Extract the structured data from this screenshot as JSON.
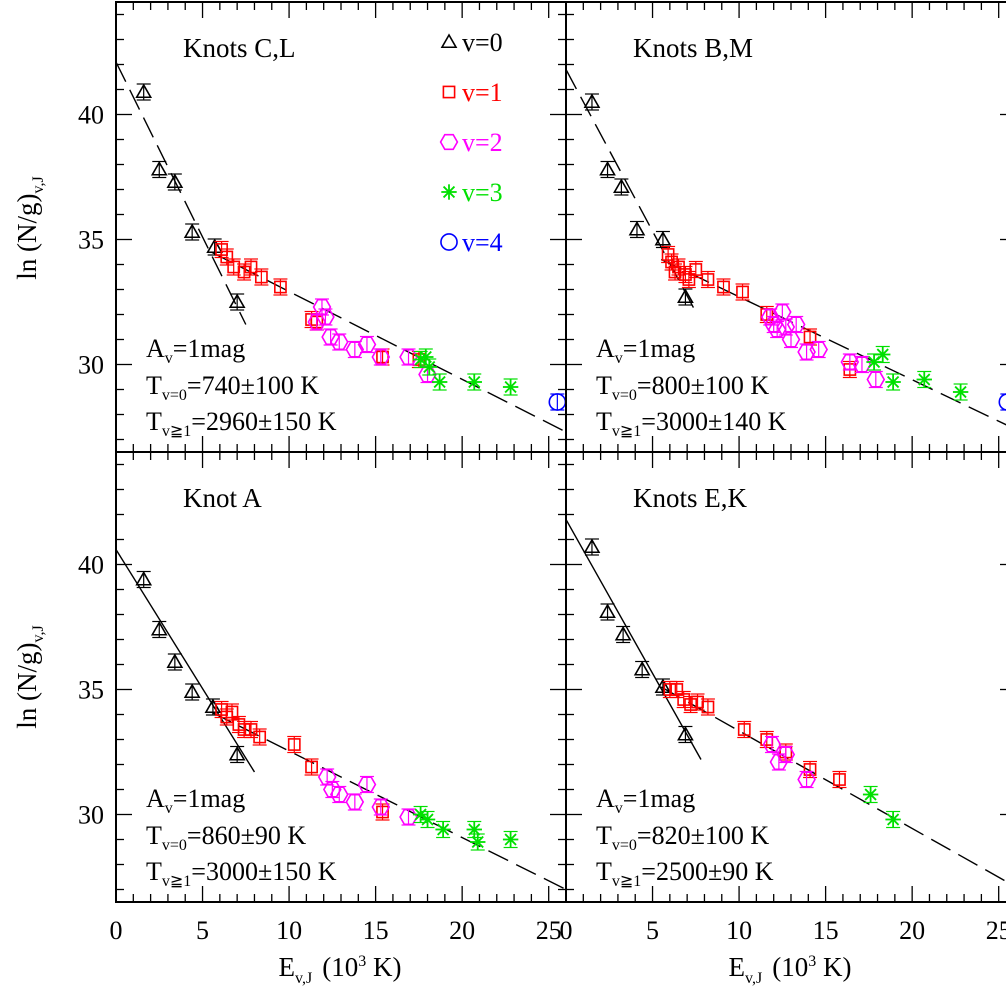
{
  "figure": {
    "ylabel_main": "ln (N/g)",
    "ylabel_sub": "v,J",
    "xlabel_main": "E",
    "xlabel_sub": "v,J",
    "xlabel_unit": "(10",
    "xlabel_exp": "3",
    "xlabel_unit_end": " K)",
    "xticks": [
      "0",
      "5",
      "10",
      "15",
      "20",
      "25"
    ],
    "yticks": [
      "30",
      "35",
      "40"
    ],
    "legend": [
      {
        "marker": "triangle",
        "label": "v=0",
        "color": "#000000"
      },
      {
        "marker": "square",
        "label": "v=1",
        "color": "#ff0000"
      },
      {
        "marker": "hexagon",
        "label": "v=2",
        "color": "#ff00ff"
      },
      {
        "marker": "asterisk",
        "label": "v=3",
        "color": "#00e000"
      },
      {
        "marker": "circle",
        "label": "v=4",
        "color": "#0000ff"
      }
    ]
  },
  "chart_data": [
    {
      "type": "scatter",
      "title": "Knots C,L",
      "xlim": [
        0,
        26
      ],
      "ylim": [
        26.5,
        44.5
      ],
      "annotations": {
        "av": "1mag",
        "t0": "740±100 K",
        "t1": "2960±150 K"
      },
      "fit_lines": [
        {
          "style": "dashed",
          "x": [
            0,
            7.5
          ],
          "y": [
            42.1,
            31.6
          ]
        },
        {
          "style": "dashed",
          "x": [
            5.5,
            26
          ],
          "y": [
            34.5,
            27.3
          ]
        }
      ],
      "series": [
        {
          "name": "v=0",
          "points": [
            [
              1.6,
              40.9
            ],
            [
              2.5,
              37.8
            ],
            [
              3.4,
              37.3
            ],
            [
              4.4,
              35.3
            ],
            [
              5.7,
              34.7
            ],
            [
              7.0,
              32.5
            ]
          ]
        },
        {
          "name": "v=1",
          "points": [
            [
              6.1,
              34.6
            ],
            [
              6.4,
              34.3
            ],
            [
              6.8,
              33.9
            ],
            [
              7.4,
              33.7
            ],
            [
              7.8,
              33.9
            ],
            [
              8.4,
              33.5
            ],
            [
              9.5,
              33.1
            ],
            [
              11.3,
              31.8
            ],
            [
              11.6,
              31.7
            ],
            [
              15.4,
              30.3
            ],
            [
              17.5,
              30.2
            ]
          ]
        },
        {
          "name": "v=2",
          "points": [
            [
              11.6,
              31.7
            ],
            [
              11.9,
              32.3
            ],
            [
              12.1,
              31.9
            ],
            [
              12.4,
              31.1
            ],
            [
              12.9,
              30.9
            ],
            [
              13.8,
              30.6
            ],
            [
              14.5,
              30.8
            ],
            [
              15.3,
              30.3
            ],
            [
              16.9,
              30.3
            ],
            [
              18.0,
              29.6
            ]
          ]
        },
        {
          "name": "v=3",
          "points": [
            [
              17.6,
              30.2
            ],
            [
              17.9,
              30.3
            ],
            [
              18.1,
              29.9
            ],
            [
              18.7,
              29.3
            ],
            [
              20.7,
              29.3
            ],
            [
              22.8,
              29.1
            ]
          ]
        },
        {
          "name": "v=4",
          "points": [
            [
              25.5,
              28.5
            ]
          ]
        }
      ]
    },
    {
      "type": "scatter",
      "title": "Knots B,M",
      "xlim": [
        0,
        26
      ],
      "ylim": [
        26.5,
        44.5
      ],
      "annotations": {
        "av": "1mag",
        "t0": "800±100 K",
        "t1": "3000±140 K"
      },
      "fit_lines": [
        {
          "style": "dashed",
          "x": [
            0,
            7.5
          ],
          "y": [
            41.8,
            32.1
          ]
        },
        {
          "style": "dashed",
          "x": [
            5.5,
            26
          ],
          "y": [
            34.2,
            27.4
          ]
        }
      ],
      "series": [
        {
          "name": "v=0",
          "points": [
            [
              1.5,
              40.5
            ],
            [
              2.4,
              37.8
            ],
            [
              3.2,
              37.1
            ],
            [
              4.1,
              35.4
            ],
            [
              5.6,
              35.0
            ],
            [
              6.9,
              32.7
            ]
          ]
        },
        {
          "name": "v=1",
          "points": [
            [
              5.9,
              34.4
            ],
            [
              6.1,
              34.1
            ],
            [
              6.3,
              33.7
            ],
            [
              6.5,
              33.9
            ],
            [
              6.9,
              33.6
            ],
            [
              7.1,
              33.4
            ],
            [
              7.5,
              33.8
            ],
            [
              8.2,
              33.4
            ],
            [
              9.1,
              33.1
            ],
            [
              10.2,
              32.9
            ],
            [
              11.6,
              32.0
            ],
            [
              14.1,
              31.1
            ],
            [
              16.4,
              29.8
            ]
          ]
        },
        {
          "name": "v=2",
          "points": [
            [
              11.8,
              31.9
            ],
            [
              12.0,
              31.6
            ],
            [
              12.2,
              31.4
            ],
            [
              12.5,
              32.1
            ],
            [
              12.7,
              31.5
            ],
            [
              13.0,
              31.0
            ],
            [
              13.3,
              31.6
            ],
            [
              13.9,
              30.5
            ],
            [
              14.6,
              30.6
            ],
            [
              16.4,
              30.1
            ],
            [
              17.1,
              30.0
            ],
            [
              17.9,
              29.4
            ]
          ]
        },
        {
          "name": "v=3",
          "points": [
            [
              17.8,
              30.1
            ],
            [
              18.3,
              30.4
            ],
            [
              18.9,
              29.3
            ],
            [
              20.7,
              29.4
            ],
            [
              22.8,
              28.9
            ]
          ]
        },
        {
          "name": "v=4",
          "points": [
            [
              25.5,
              28.5
            ]
          ]
        }
      ]
    },
    {
      "type": "scatter",
      "title": "Knot A",
      "xlim": [
        0,
        26
      ],
      "ylim": [
        26.5,
        44.5
      ],
      "annotations": {
        "av": "1mag",
        "t0": "860±90 K",
        "t1": "3000±150 K"
      },
      "fit_lines": [
        {
          "style": "solid",
          "x": [
            0,
            8.0
          ],
          "y": [
            40.6,
            31.7
          ]
        },
        {
          "style": "dashed",
          "x": [
            5.5,
            26
          ],
          "y": [
            34.1,
            27.0
          ]
        }
      ],
      "series": [
        {
          "name": "v=0",
          "points": [
            [
              1.6,
              39.4
            ],
            [
              2.5,
              37.4
            ],
            [
              3.4,
              36.1
            ],
            [
              4.4,
              34.9
            ],
            [
              5.6,
              34.3
            ],
            [
              7.0,
              32.4
            ]
          ]
        },
        {
          "name": "v=1",
          "points": [
            [
              6.1,
              34.2
            ],
            [
              6.4,
              33.9
            ],
            [
              6.7,
              34.1
            ],
            [
              7.1,
              33.6
            ],
            [
              7.4,
              33.4
            ],
            [
              7.8,
              33.4
            ],
            [
              8.3,
              33.1
            ],
            [
              10.3,
              32.8
            ],
            [
              11.3,
              31.9
            ],
            [
              15.4,
              30.1
            ]
          ]
        },
        {
          "name": "v=2",
          "points": [
            [
              12.2,
              31.5
            ],
            [
              12.5,
              31.0
            ],
            [
              12.9,
              30.8
            ],
            [
              13.8,
              30.5
            ],
            [
              14.5,
              31.2
            ],
            [
              15.3,
              30.3
            ],
            [
              16.9,
              29.9
            ]
          ]
        },
        {
          "name": "v=3",
          "points": [
            [
              17.6,
              30.0
            ],
            [
              18.0,
              29.8
            ],
            [
              18.9,
              29.4
            ],
            [
              20.7,
              29.4
            ],
            [
              20.9,
              28.9
            ],
            [
              22.8,
              29.0
            ]
          ]
        }
      ]
    },
    {
      "type": "scatter",
      "title": "Knots E,K",
      "xlim": [
        0,
        26
      ],
      "ylim": [
        26.5,
        44.5
      ],
      "annotations": {
        "av": "1mag",
        "t0": "820±100 K",
        "t1": "2500±90 K"
      },
      "fit_lines": [
        {
          "style": "solid",
          "x": [
            0,
            7.8
          ],
          "y": [
            41.8,
            32.2
          ]
        },
        {
          "style": "dashed",
          "x": [
            5.5,
            26
          ],
          "y": [
            35.1,
            27.1
          ]
        }
      ],
      "series": [
        {
          "name": "v=0",
          "points": [
            [
              1.5,
              40.7
            ],
            [
              2.4,
              38.1
            ],
            [
              3.3,
              37.2
            ],
            [
              4.4,
              35.8
            ],
            [
              5.6,
              35.1
            ],
            [
              6.9,
              33.2
            ]
          ]
        },
        {
          "name": "v=1",
          "points": [
            [
              6.0,
              35.0
            ],
            [
              6.4,
              35.0
            ],
            [
              6.8,
              34.6
            ],
            [
              7.2,
              34.4
            ],
            [
              7.6,
              34.5
            ],
            [
              8.2,
              34.3
            ],
            [
              10.3,
              33.4
            ],
            [
              11.6,
              33.0
            ],
            [
              12.7,
              32.5
            ],
            [
              14.1,
              31.8
            ],
            [
              15.8,
              31.4
            ]
          ]
        },
        {
          "name": "v=2",
          "points": [
            [
              11.9,
              32.8
            ],
            [
              12.3,
              32.1
            ],
            [
              12.7,
              32.4
            ],
            [
              13.9,
              31.4
            ]
          ]
        },
        {
          "name": "v=3",
          "points": [
            [
              17.6,
              30.8
            ],
            [
              18.9,
              29.8
            ]
          ]
        }
      ]
    }
  ]
}
